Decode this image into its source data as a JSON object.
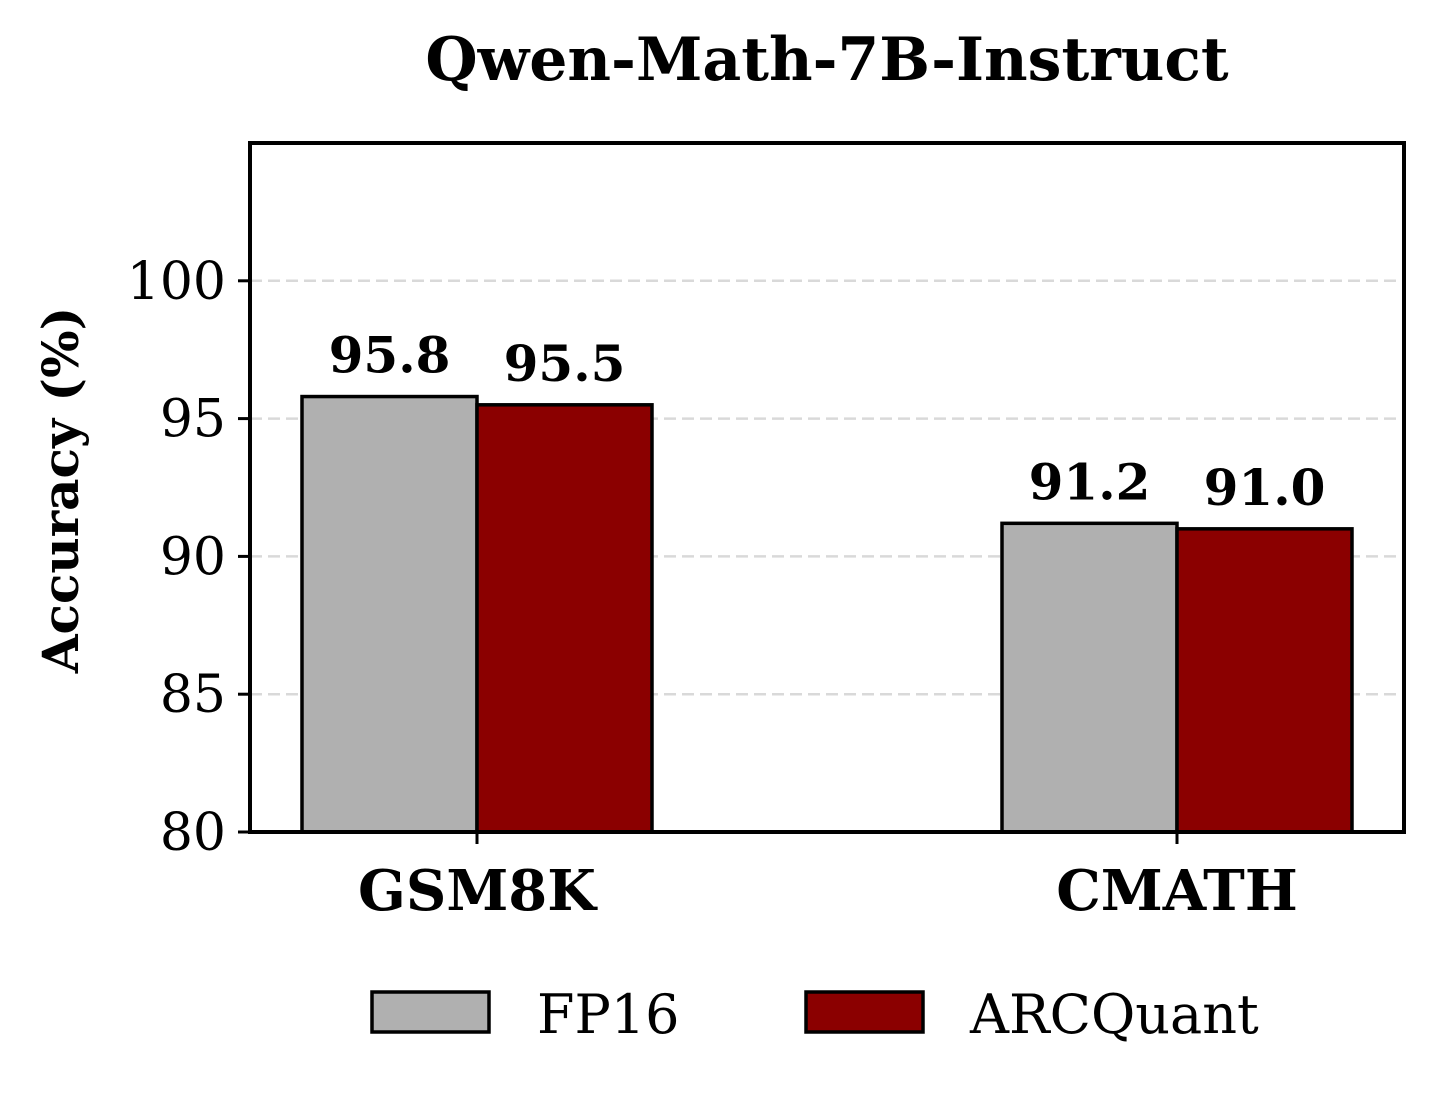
{
  "chart_data": {
    "type": "bar",
    "title": "Qwen-Math-7B-Instruct",
    "ylabel": "Accuracy (%)",
    "xlabel": "",
    "categories": [
      "GSM8K",
      "CMATH"
    ],
    "series": [
      {
        "name": "FP16",
        "values": [
          95.8,
          91.2
        ],
        "color": "#b0b0b0"
      },
      {
        "name": "ARCQuant",
        "values": [
          95.5,
          91.0
        ],
        "color": "#8b0000"
      }
    ],
    "data_labels": [
      [
        "95.8",
        "91.2"
      ],
      [
        "95.5",
        "91.0"
      ]
    ],
    "ylim": [
      80,
      105
    ],
    "yticks": [
      80,
      85,
      90,
      95,
      100
    ],
    "ytick_labels": [
      "80",
      "85",
      "90",
      "95",
      "100"
    ],
    "grid": "y-dashed",
    "legend": {
      "placement": "bottom",
      "entries": [
        "FP16",
        "ARCQuant"
      ]
    }
  }
}
